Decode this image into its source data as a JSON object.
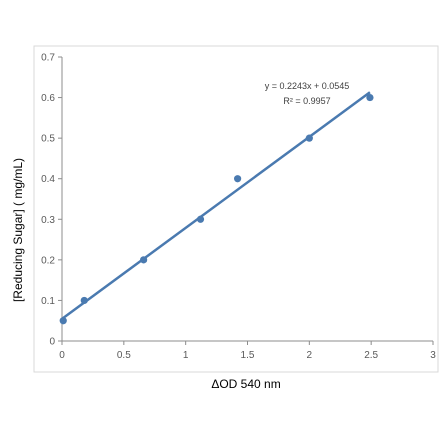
{
  "chart_data": {
    "type": "scatter",
    "xlabel": "ΔOD 540 nm",
    "ylabel": "[Reducing Sugar] ( mg/mL)",
    "xlim": [
      0,
      3
    ],
    "ylim": [
      0,
      0.7
    ],
    "x_ticks": [
      "0",
      "0.5",
      "1",
      "1.5",
      "2",
      "2.5",
      "3"
    ],
    "y_ticks": [
      "0",
      "0.1",
      "0.2",
      "0.3",
      "0.4",
      "0.5",
      "0.6",
      "0.7"
    ],
    "grid": false,
    "series": [
      {
        "x": [
          0.01,
          0.18,
          0.66,
          1.12,
          1.42,
          2.0,
          2.49
        ],
        "y": [
          0.05,
          0.1,
          0.2,
          0.3,
          0.4,
          0.5,
          0.6
        ]
      }
    ],
    "trendline": {
      "slope": 0.2243,
      "intercept": 0.0545,
      "x_range": [
        0,
        2.49
      ]
    },
    "annotations": {
      "equation": "y = 0.2243x + 0.0545",
      "r_squared": "R² = 0.9957"
    },
    "colors": {
      "series": "#4a7ab0",
      "axis": "#8c8c8c",
      "frame": "#d9d9d9"
    }
  }
}
